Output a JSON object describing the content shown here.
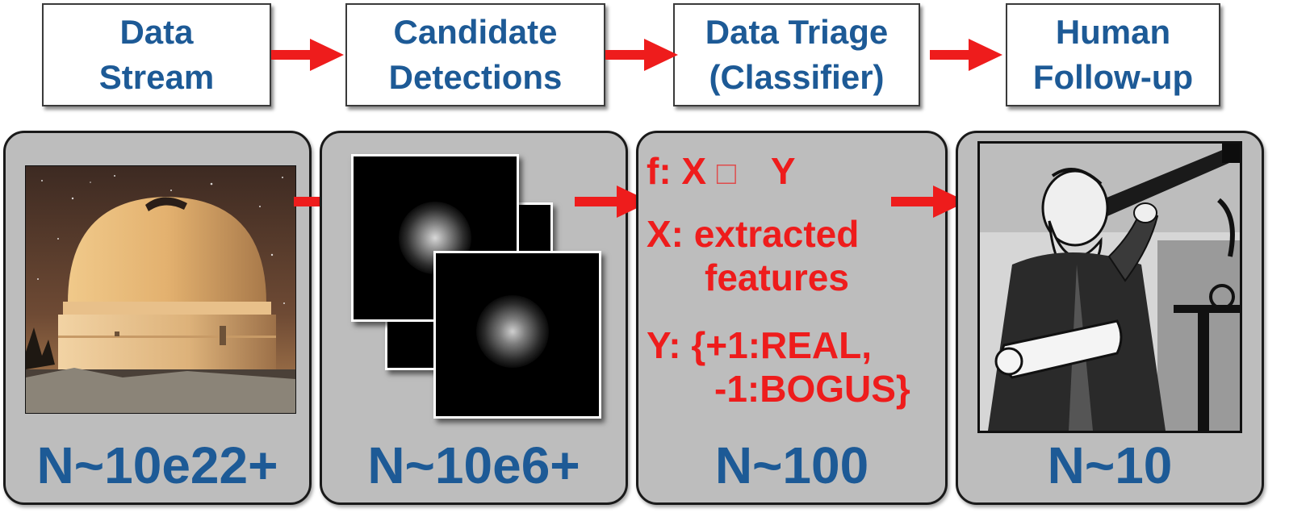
{
  "stages": [
    {
      "line1": "Data",
      "line2": "Stream"
    },
    {
      "line1": "Candidate",
      "line2": "Detections"
    },
    {
      "line1": "Data Triage",
      "line2": "(Classifier)"
    },
    {
      "line1": "Human",
      "line2": "Follow-up"
    }
  ],
  "counts": [
    "N~10e22+",
    "N~10e6+",
    "N~100",
    "N~10"
  ],
  "triage": {
    "f_prefix": "f: X",
    "f_box": "□",
    "f_suffix": "Y",
    "x_line1": "X: extracted",
    "x_line2": "features",
    "y_line1": "Y: {+1:REAL,",
    "y_line2": "-1:BOGUS}"
  },
  "colors": {
    "title_text": "#1d5a96",
    "count_text": "#1d5a96",
    "arrow": "#ee1c1c",
    "triage_text": "#ee1c1c",
    "panel_bg": "#bdbdbd"
  },
  "icons": {
    "panel1": "observatory-dome-photo",
    "panel2": "detection-cutout-stamps",
    "panel4": "astronomer-with-telescope-illustration"
  }
}
